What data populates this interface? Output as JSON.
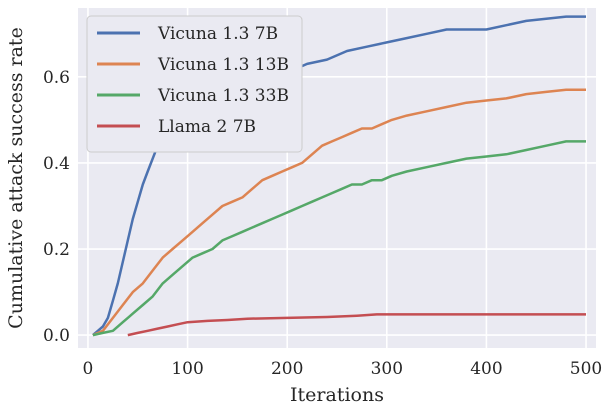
{
  "chart_data": {
    "type": "line",
    "title": "",
    "xlabel": "Iterations",
    "ylabel": "Cumulative attack success rate",
    "xlim": [
      -10,
      510
    ],
    "ylim": [
      -0.03,
      0.76
    ],
    "xticks": [
      0,
      100,
      200,
      300,
      400,
      500
    ],
    "xtick_labels": [
      "0",
      "100",
      "200",
      "300",
      "400",
      "500"
    ],
    "yticks": [
      0.0,
      0.2,
      0.4,
      0.6
    ],
    "ytick_labels": [
      "0.0",
      "0.2",
      "0.4",
      "0.6"
    ],
    "grid": true,
    "legend_position": "upper-left",
    "background": "#eaeaf2",
    "series": [
      {
        "name": "Vicuna 1.3 7B",
        "color": "#4c72b0",
        "x": [
          5,
          10,
          15,
          20,
          25,
          30,
          35,
          40,
          45,
          50,
          55,
          60,
          65,
          70,
          75,
          80,
          85,
          90,
          95,
          100,
          110,
          120,
          130,
          140,
          150,
          160,
          170,
          180,
          190,
          200,
          220,
          240,
          260,
          280,
          300,
          320,
          340,
          360,
          380,
          400,
          420,
          440,
          460,
          480,
          500
        ],
        "y": [
          0.0,
          0.01,
          0.02,
          0.04,
          0.08,
          0.12,
          0.17,
          0.22,
          0.27,
          0.31,
          0.35,
          0.38,
          0.41,
          0.44,
          0.47,
          0.49,
          0.51,
          0.52,
          0.53,
          0.55,
          0.56,
          0.57,
          0.58,
          0.59,
          0.59,
          0.6,
          0.6,
          0.6,
          0.61,
          0.61,
          0.63,
          0.64,
          0.66,
          0.67,
          0.68,
          0.69,
          0.7,
          0.71,
          0.71,
          0.71,
          0.72,
          0.73,
          0.735,
          0.74,
          0.74
        ]
      },
      {
        "name": "Vicuna 1.3 13B",
        "color": "#dd8452",
        "x": [
          5,
          15,
          25,
          35,
          45,
          55,
          65,
          75,
          85,
          95,
          105,
          115,
          125,
          135,
          145,
          155,
          165,
          175,
          185,
          195,
          205,
          215,
          225,
          235,
          245,
          255,
          265,
          275,
          285,
          295,
          305,
          320,
          340,
          360,
          380,
          400,
          420,
          440,
          460,
          480,
          500
        ],
        "y": [
          0.0,
          0.01,
          0.04,
          0.07,
          0.1,
          0.12,
          0.15,
          0.18,
          0.2,
          0.22,
          0.24,
          0.26,
          0.28,
          0.3,
          0.31,
          0.32,
          0.34,
          0.36,
          0.37,
          0.38,
          0.39,
          0.4,
          0.42,
          0.44,
          0.45,
          0.46,
          0.47,
          0.48,
          0.48,
          0.49,
          0.5,
          0.51,
          0.52,
          0.53,
          0.54,
          0.545,
          0.55,
          0.56,
          0.565,
          0.57,
          0.57
        ]
      },
      {
        "name": "Vicuna 1.3 33B",
        "color": "#55a868",
        "x": [
          5,
          15,
          25,
          35,
          45,
          55,
          65,
          75,
          85,
          95,
          105,
          115,
          125,
          135,
          145,
          155,
          165,
          175,
          185,
          195,
          205,
          215,
          225,
          235,
          245,
          255,
          265,
          275,
          285,
          295,
          305,
          320,
          340,
          360,
          380,
          400,
          420,
          440,
          460,
          480,
          500
        ],
        "y": [
          0.0,
          0.005,
          0.01,
          0.03,
          0.05,
          0.07,
          0.09,
          0.12,
          0.14,
          0.16,
          0.18,
          0.19,
          0.2,
          0.22,
          0.23,
          0.24,
          0.25,
          0.26,
          0.27,
          0.28,
          0.29,
          0.3,
          0.31,
          0.32,
          0.33,
          0.34,
          0.35,
          0.35,
          0.36,
          0.36,
          0.37,
          0.38,
          0.39,
          0.4,
          0.41,
          0.415,
          0.42,
          0.43,
          0.44,
          0.45,
          0.45
        ]
      },
      {
        "name": "Llama 2 7B",
        "color": "#c44e52",
        "x": [
          40,
          50,
          60,
          70,
          80,
          90,
          100,
          120,
          140,
          160,
          200,
          240,
          270,
          290,
          320,
          360,
          400,
          440,
          480,
          500
        ],
        "y": [
          0.0,
          0.005,
          0.01,
          0.015,
          0.02,
          0.025,
          0.03,
          0.033,
          0.035,
          0.038,
          0.04,
          0.042,
          0.045,
          0.048,
          0.048,
          0.048,
          0.048,
          0.048,
          0.048,
          0.048
        ]
      }
    ]
  }
}
